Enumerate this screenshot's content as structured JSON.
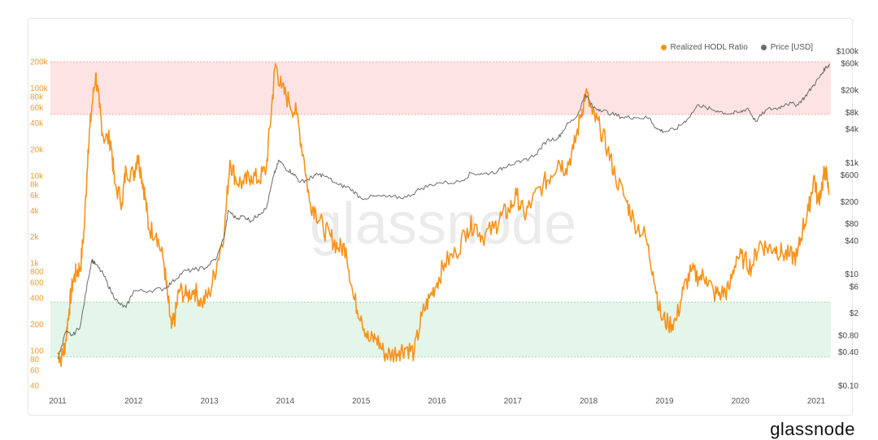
{
  "page": {
    "watermark": "glassnode",
    "brand": "glassnode"
  },
  "legend": {
    "hodl_label": "Realized HODL Ratio",
    "price_label": "Price [USD]"
  },
  "colors": {
    "hodl": "#f7931a",
    "price": "#6b6b6b",
    "red_zone": "#fde3e3",
    "green_zone": "#e4f5ea",
    "zone_line_red": "#f2a8a8",
    "zone_line_green": "#9fd8b0"
  },
  "chart_data": {
    "type": "line",
    "title": "",
    "xlabel": "",
    "ylabel_left": "",
    "ylabel_right": "",
    "x_ticks": [
      "2011",
      "2012",
      "2013",
      "2014",
      "2015",
      "2016",
      "2017",
      "2018",
      "2019",
      "2020",
      "2021"
    ],
    "xlim": [
      2010.97,
      2021.2
    ],
    "left_axis": {
      "scale": "log",
      "ylim": [
        40,
        200000
      ],
      "ticks": [
        {
          "v": 200000,
          "label": "200k"
        },
        {
          "v": 100000,
          "label": "100k"
        },
        {
          "v": 80000,
          "label": "80k"
        },
        {
          "v": 60000,
          "label": "60k"
        },
        {
          "v": 40000,
          "label": "40k"
        },
        {
          "v": 20000,
          "label": "20k"
        },
        {
          "v": 10000,
          "label": "10k"
        },
        {
          "v": 8000,
          "label": "8k"
        },
        {
          "v": 6000,
          "label": "6k"
        },
        {
          "v": 4000,
          "label": "4k"
        },
        {
          "v": 2000,
          "label": "2k"
        },
        {
          "v": 1000,
          "label": "1k"
        },
        {
          "v": 800,
          "label": "800"
        },
        {
          "v": 600,
          "label": "600"
        },
        {
          "v": 400,
          "label": "400"
        },
        {
          "v": 200,
          "label": "200"
        },
        {
          "v": 100,
          "label": "100"
        },
        {
          "v": 80,
          "label": "80"
        },
        {
          "v": 60,
          "label": "60"
        },
        {
          "v": 40,
          "label": "40"
        }
      ]
    },
    "right_axis": {
      "scale": "log",
      "ylim": [
        0.1,
        100000
      ],
      "ticks": [
        {
          "v": 100000,
          "label": "$100k"
        },
        {
          "v": 60000,
          "label": "$60k"
        },
        {
          "v": 20000,
          "label": "$20k"
        },
        {
          "v": 8000,
          "label": "$8k"
        },
        {
          "v": 4000,
          "label": "$4k"
        },
        {
          "v": 1000,
          "label": "$1k"
        },
        {
          "v": 600,
          "label": "$600"
        },
        {
          "v": 200,
          "label": "$200"
        },
        {
          "v": 80,
          "label": "$80"
        },
        {
          "v": 40,
          "label": "$40"
        },
        {
          "v": 10,
          "label": "$10"
        },
        {
          "v": 6,
          "label": "$6"
        },
        {
          "v": 2,
          "label": "$2"
        },
        {
          "v": 0.8,
          "label": "$0.80"
        },
        {
          "v": 0.4,
          "label": "$0.40"
        },
        {
          "v": 0.1,
          "label": "$0.10"
        }
      ]
    },
    "zones": [
      {
        "name": "red",
        "from": 50000,
        "to": 200000
      },
      {
        "name": "green",
        "from": 85,
        "to": 360
      }
    ],
    "series": [
      {
        "name": "Realized HODL Ratio",
        "axis": "left",
        "points": [
          [
            2011.0,
            95
          ],
          [
            2011.05,
            82
          ],
          [
            2011.1,
            120
          ],
          [
            2011.15,
            300
          ],
          [
            2011.2,
            620
          ],
          [
            2011.25,
            800
          ],
          [
            2011.3,
            900
          ],
          [
            2011.35,
            2500
          ],
          [
            2011.4,
            20000
          ],
          [
            2011.45,
            60000
          ],
          [
            2011.5,
            145000
          ],
          [
            2011.55,
            60000
          ],
          [
            2011.6,
            28000
          ],
          [
            2011.7,
            25000
          ],
          [
            2011.75,
            8000
          ],
          [
            2011.85,
            5000
          ],
          [
            2011.9,
            12000
          ],
          [
            2012.0,
            10000
          ],
          [
            2012.05,
            17000
          ],
          [
            2012.1,
            11000
          ],
          [
            2012.15,
            6000
          ],
          [
            2012.2,
            2500
          ],
          [
            2012.3,
            2200
          ],
          [
            2012.4,
            1000
          ],
          [
            2012.45,
            400
          ],
          [
            2012.5,
            180
          ],
          [
            2012.55,
            250
          ],
          [
            2012.6,
            500
          ],
          [
            2012.7,
            420
          ],
          [
            2012.8,
            500
          ],
          [
            2012.9,
            350
          ],
          [
            2013.0,
            450
          ],
          [
            2013.1,
            1000
          ],
          [
            2013.2,
            2500
          ],
          [
            2013.27,
            15000
          ],
          [
            2013.35,
            9000
          ],
          [
            2013.45,
            8000
          ],
          [
            2013.55,
            10000
          ],
          [
            2013.65,
            9000
          ],
          [
            2013.75,
            12000
          ],
          [
            2013.82,
            60000
          ],
          [
            2013.87,
            190000
          ],
          [
            2013.95,
            100000
          ],
          [
            2014.05,
            70000
          ],
          [
            2014.15,
            50000
          ],
          [
            2014.25,
            15000
          ],
          [
            2014.32,
            5000
          ],
          [
            2014.4,
            4000
          ],
          [
            2014.5,
            2500
          ],
          [
            2014.6,
            2000
          ],
          [
            2014.7,
            1500
          ],
          [
            2014.8,
            1500
          ],
          [
            2014.9,
            400
          ],
          [
            2015.0,
            250
          ],
          [
            2015.1,
            130
          ],
          [
            2015.2,
            140
          ],
          [
            2015.3,
            95
          ],
          [
            2015.4,
            90
          ],
          [
            2015.5,
            100
          ],
          [
            2015.6,
            110
          ],
          [
            2015.7,
            95
          ],
          [
            2015.8,
            250
          ],
          [
            2015.9,
            400
          ],
          [
            2016.0,
            600
          ],
          [
            2016.1,
            1000
          ],
          [
            2016.25,
            1300
          ],
          [
            2016.4,
            2500
          ],
          [
            2016.5,
            2800
          ],
          [
            2016.6,
            2000
          ],
          [
            2016.75,
            2500
          ],
          [
            2016.85,
            3500
          ],
          [
            2016.95,
            4000
          ],
          [
            2017.05,
            6000
          ],
          [
            2017.15,
            3500
          ],
          [
            2017.25,
            5000
          ],
          [
            2017.4,
            8000
          ],
          [
            2017.5,
            10000
          ],
          [
            2017.6,
            15000
          ],
          [
            2017.7,
            12000
          ],
          [
            2017.8,
            20000
          ],
          [
            2017.9,
            50000
          ],
          [
            2017.96,
            90000
          ],
          [
            2018.05,
            50000
          ],
          [
            2018.15,
            35000
          ],
          [
            2018.25,
            20000
          ],
          [
            2018.35,
            10000
          ],
          [
            2018.5,
            5000
          ],
          [
            2018.6,
            3000
          ],
          [
            2018.75,
            2000
          ],
          [
            2018.85,
            800
          ],
          [
            2018.95,
            250
          ],
          [
            2019.05,
            200
          ],
          [
            2019.15,
            220
          ],
          [
            2019.25,
            500
          ],
          [
            2019.35,
            800
          ],
          [
            2019.45,
            700
          ],
          [
            2019.55,
            700
          ],
          [
            2019.65,
            450
          ],
          [
            2019.75,
            450
          ],
          [
            2019.85,
            500
          ],
          [
            2019.95,
            1200
          ],
          [
            2020.05,
            1100
          ],
          [
            2020.15,
            900
          ],
          [
            2020.25,
            1700
          ],
          [
            2020.35,
            1500
          ],
          [
            2020.45,
            1500
          ],
          [
            2020.55,
            1300
          ],
          [
            2020.65,
            1200
          ],
          [
            2020.75,
            1200
          ],
          [
            2020.82,
            2500
          ],
          [
            2020.9,
            4000
          ],
          [
            2020.97,
            10000
          ],
          [
            2021.02,
            5000
          ],
          [
            2021.08,
            8000
          ],
          [
            2021.12,
            12000
          ],
          [
            2021.17,
            6000
          ]
        ]
      },
      {
        "name": "Price [USD]",
        "axis": "right",
        "points": [
          [
            2011.0,
            0.3
          ],
          [
            2011.05,
            0.5
          ],
          [
            2011.1,
            0.9
          ],
          [
            2011.2,
            0.8
          ],
          [
            2011.3,
            1.2
          ],
          [
            2011.4,
            8
          ],
          [
            2011.45,
            18
          ],
          [
            2011.5,
            15
          ],
          [
            2011.6,
            10
          ],
          [
            2011.7,
            5
          ],
          [
            2011.8,
            3
          ],
          [
            2011.9,
            2.5
          ],
          [
            2012.0,
            5
          ],
          [
            2012.2,
            5
          ],
          [
            2012.4,
            5.5
          ],
          [
            2012.5,
            7
          ],
          [
            2012.65,
            11
          ],
          [
            2012.8,
            12
          ],
          [
            2012.95,
            13
          ],
          [
            2013.1,
            20
          ],
          [
            2013.2,
            50
          ],
          [
            2013.25,
            140
          ],
          [
            2013.35,
            100
          ],
          [
            2013.45,
            110
          ],
          [
            2013.55,
            90
          ],
          [
            2013.65,
            120
          ],
          [
            2013.75,
            150
          ],
          [
            2013.85,
            600
          ],
          [
            2013.92,
            1100
          ],
          [
            2014.0,
            800
          ],
          [
            2014.1,
            650
          ],
          [
            2014.2,
            450
          ],
          [
            2014.3,
            500
          ],
          [
            2014.4,
            600
          ],
          [
            2014.5,
            600
          ],
          [
            2014.7,
            400
          ],
          [
            2014.85,
            350
          ],
          [
            2015.0,
            230
          ],
          [
            2015.2,
            250
          ],
          [
            2015.4,
            240
          ],
          [
            2015.6,
            240
          ],
          [
            2015.8,
            350
          ],
          [
            2016.0,
            430
          ],
          [
            2016.3,
            450
          ],
          [
            2016.45,
            650
          ],
          [
            2016.6,
            620
          ],
          [
            2016.8,
            700
          ],
          [
            2016.95,
            950
          ],
          [
            2017.1,
            1000
          ],
          [
            2017.3,
            1400
          ],
          [
            2017.45,
            2500
          ],
          [
            2017.6,
            2800
          ],
          [
            2017.7,
            4500
          ],
          [
            2017.85,
            7000
          ],
          [
            2017.96,
            17000
          ],
          [
            2018.05,
            10000
          ],
          [
            2018.15,
            9000
          ],
          [
            2018.3,
            7500
          ],
          [
            2018.45,
            6500
          ],
          [
            2018.6,
            6500
          ],
          [
            2018.8,
            6300
          ],
          [
            2018.9,
            4000
          ],
          [
            2019.0,
            3600
          ],
          [
            2019.15,
            4000
          ],
          [
            2019.3,
            6000
          ],
          [
            2019.45,
            11000
          ],
          [
            2019.55,
            9500
          ],
          [
            2019.7,
            8500
          ],
          [
            2019.85,
            7500
          ],
          [
            2020.0,
            8000
          ],
          [
            2020.1,
            9500
          ],
          [
            2020.2,
            5500
          ],
          [
            2020.35,
            9000
          ],
          [
            2020.5,
            9500
          ],
          [
            2020.6,
            11500
          ],
          [
            2020.75,
            11000
          ],
          [
            2020.85,
            15000
          ],
          [
            2020.95,
            23000
          ],
          [
            2021.05,
            35000
          ],
          [
            2021.12,
            50000
          ],
          [
            2021.18,
            58000
          ]
        ]
      }
    ]
  }
}
